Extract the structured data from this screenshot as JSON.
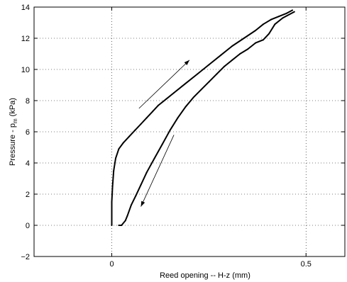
{
  "chart_data": {
    "type": "line",
    "title": "",
    "xlabel": "Reed opening -- H-z (mm)",
    "ylabel_main": "Pressure - p",
    "ylabel_sub": "m",
    "ylabel_unit": " (kPa)",
    "xlim": [
      -0.2,
      0.6
    ],
    "ylim": [
      -2,
      14
    ],
    "xticks": [
      0,
      0.5
    ],
    "xtick_labels": [
      "0",
      "0.5"
    ],
    "yticks": [
      -2,
      0,
      2,
      4,
      6,
      8,
      10,
      12,
      14
    ],
    "ytick_labels": [
      "−2",
      "0",
      "2",
      "4",
      "6",
      "8",
      "10",
      "12",
      "14"
    ],
    "grid": "dotted",
    "series": [
      {
        "direction": "increasing",
        "x": [
          0.0,
          0.0,
          0.002,
          0.005,
          0.01,
          0.018,
          0.03,
          0.045,
          0.06,
          0.075,
          0.09,
          0.105,
          0.12,
          0.14,
          0.16,
          0.19,
          0.22,
          0.25,
          0.28,
          0.31,
          0.34,
          0.37,
          0.39,
          0.41,
          0.43,
          0.45,
          0.465
        ],
        "y": [
          0.0,
          1.5,
          2.5,
          3.5,
          4.3,
          4.9,
          5.3,
          5.7,
          6.1,
          6.5,
          6.9,
          7.3,
          7.7,
          8.1,
          8.5,
          9.1,
          9.7,
          10.3,
          10.9,
          11.5,
          12.0,
          12.5,
          12.9,
          13.2,
          13.4,
          13.6,
          13.8
        ]
      },
      {
        "direction": "decreasing",
        "x": [
          0.47,
          0.44,
          0.42,
          0.405,
          0.39,
          0.37,
          0.35,
          0.33,
          0.31,
          0.29,
          0.27,
          0.25,
          0.23,
          0.21,
          0.19,
          0.17,
          0.15,
          0.13,
          0.11,
          0.09,
          0.075,
          0.062,
          0.05,
          0.04,
          0.035,
          0.025,
          0.018
        ],
        "y": [
          13.7,
          13.3,
          12.9,
          12.3,
          11.9,
          11.7,
          11.3,
          11.0,
          10.6,
          10.2,
          9.7,
          9.2,
          8.7,
          8.2,
          7.6,
          6.9,
          6.1,
          5.2,
          4.3,
          3.4,
          2.6,
          1.9,
          1.3,
          0.6,
          0.3,
          0.0,
          0.0
        ]
      }
    ],
    "annotations": [
      {
        "type": "arrow",
        "from": [
          0.07,
          7.5
        ],
        "to": [
          0.2,
          10.6
        ]
      },
      {
        "type": "arrow",
        "from": [
          0.16,
          5.8
        ],
        "to": [
          0.075,
          1.2
        ]
      }
    ]
  }
}
